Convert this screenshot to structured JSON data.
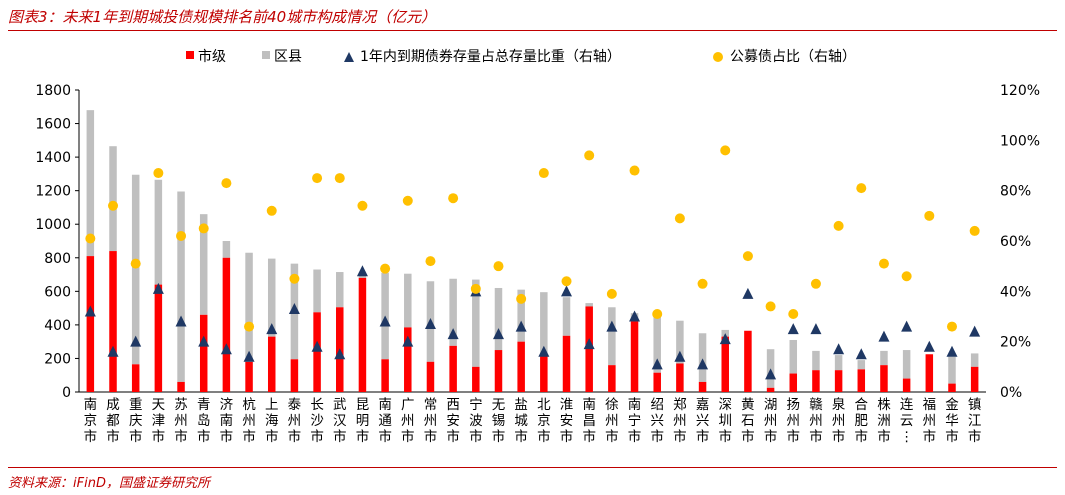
{
  "title": "图表3：未来1年到期城投债规模排名前40城市构成情况（亿元）",
  "source": "资料来源：iFinD，国盛证券研究所",
  "colors": {
    "city": "#ff0000",
    "district": "#bfbfbf",
    "triangle": "#1f3864",
    "dot": "#ffc000",
    "accent": "#c00000"
  },
  "chart_data": {
    "type": "bar",
    "stacked": true,
    "categories": [
      "南京市",
      "成都市",
      "重庆市",
      "天津市",
      "苏州市",
      "青岛市",
      "济南市",
      "杭州市",
      "上海市",
      "泰州市",
      "长沙市",
      "武汉市",
      "昆明市",
      "南通市",
      "广州市",
      "常州市",
      "西安市",
      "宁波市",
      "无锡市",
      "盐城市",
      "北京市",
      "淮安市",
      "南昌市",
      "徐州市",
      "南宁市",
      "绍兴市",
      "郑州市",
      "嘉兴市",
      "深圳市",
      "黄石市",
      "湖州市",
      "扬州市",
      "赣州市",
      "泉州市",
      "合肥市",
      "株洲市",
      "连云港市",
      "福州市",
      "金华市",
      "镇江市"
    ],
    "legend": [
      "市级",
      "区县",
      "1年内到期债券存量占总存量比重（右轴）",
      "公募债占比（右轴）"
    ],
    "series": [
      {
        "name": "市级",
        "axis": "left",
        "marker": "bar",
        "values": [
          810,
          840,
          165,
          640,
          60,
          460,
          800,
          180,
          330,
          195,
          475,
          505,
          680,
          195,
          385,
          180,
          275,
          150,
          250,
          300,
          220,
          335,
          510,
          160,
          420,
          115,
          170,
          60,
          330,
          365,
          25,
          110,
          130,
          130,
          135,
          160,
          80,
          225,
          50,
          150
        ]
      },
      {
        "name": "区县",
        "axis": "left",
        "marker": "bar",
        "values": [
          870,
          625,
          1130,
          625,
          1135,
          600,
          100,
          650,
          465,
          570,
          255,
          210,
          20,
          515,
          320,
          480,
          400,
          520,
          370,
          310,
          375,
          230,
          20,
          345,
          50,
          335,
          255,
          290,
          40,
          0,
          230,
          200,
          115,
          90,
          55,
          85,
          170,
          0,
          160,
          80
        ]
      },
      {
        "name": "1年内到期债券存量占总存量比重（右轴）",
        "axis": "right",
        "marker": "triangle",
        "values": [
          32,
          16,
          20,
          41,
          28,
          20,
          17,
          14,
          25,
          33,
          18,
          15,
          48,
          28,
          20,
          27,
          23,
          40,
          23,
          26,
          16,
          40,
          19,
          26,
          30,
          11,
          14,
          11,
          21,
          39,
          7,
          25,
          25,
          17,
          15,
          22,
          26,
          18,
          16,
          24
        ]
      },
      {
        "name": "公募债占比（右轴）",
        "axis": "right",
        "marker": "dot",
        "values": [
          61,
          74,
          51,
          87,
          62,
          65,
          83,
          26,
          72,
          45,
          85,
          85,
          74,
          49,
          76,
          52,
          77,
          41,
          50,
          37,
          87,
          44,
          94,
          39,
          88,
          31,
          69,
          43,
          96,
          54,
          34,
          31,
          43,
          66,
          81,
          51,
          46,
          70,
          26,
          64
        ]
      }
    ],
    "ylim_left": [
      0,
      1800
    ],
    "yticks_left": [
      0,
      200,
      400,
      600,
      800,
      1000,
      1200,
      1400,
      1600,
      1800
    ],
    "ylim_right": [
      0,
      120
    ],
    "yticks_right": [
      "0%",
      "20%",
      "40%",
      "60%",
      "80%",
      "100%",
      "120%"
    ],
    "grid": false,
    "legend_position": "top"
  }
}
